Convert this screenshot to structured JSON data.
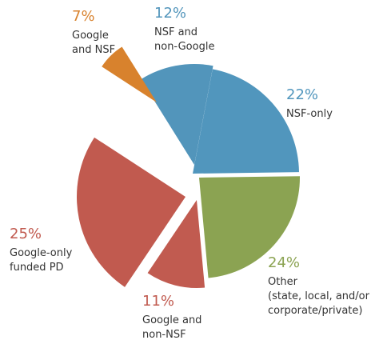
{
  "chart_data": {
    "type": "pie",
    "categories": [
      [
        "NSF and",
        "non-Google"
      ],
      [
        "NSF-only"
      ],
      [
        "Other",
        "(state, local, and/or",
        "corporate/private)"
      ],
      [
        "Google and",
        "non-NSF"
      ],
      [
        "Google-only",
        "funded PD"
      ],
      [
        "Google",
        "and NSF"
      ]
    ],
    "values": [
      12,
      22,
      24,
      11,
      25,
      7
    ],
    "value_labels": [
      "12%",
      "22%",
      "24%",
      "11%",
      "25%",
      "7%"
    ],
    "colors": [
      "#5295bb",
      "#5196bd",
      "#8ba352",
      "#c15b50",
      "#c15a4f",
      "#d8822d"
    ]
  }
}
